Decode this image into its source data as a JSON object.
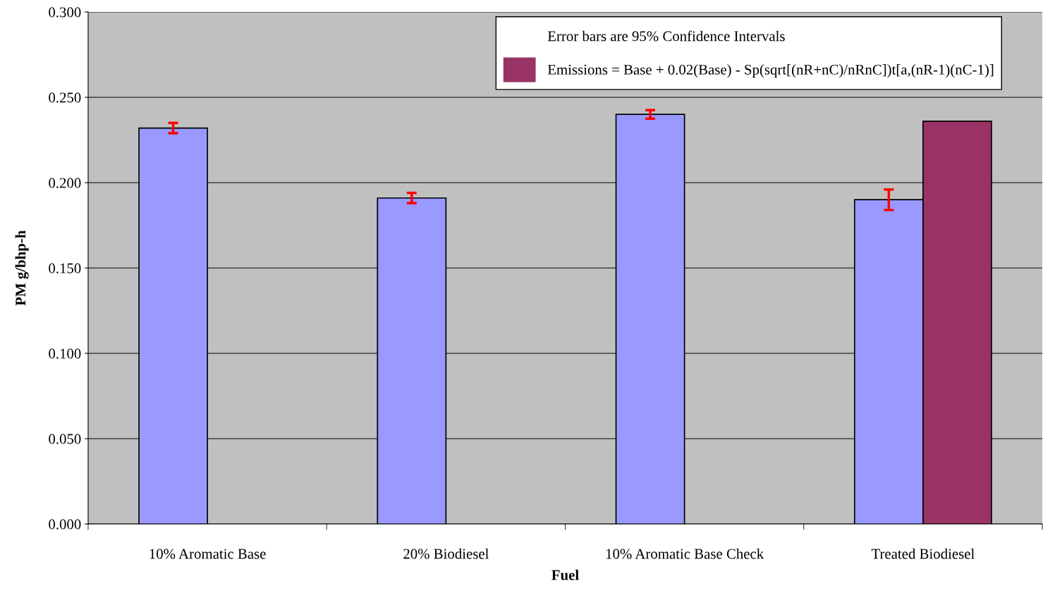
{
  "chart_data": {
    "type": "bar",
    "xlabel": "Fuel",
    "ylabel": "PM g/bhp-h",
    "categories": [
      "10% Aromatic Base",
      "20% Biodiesel",
      "10% Aromatic Base Check",
      "Treated Biodiesel"
    ],
    "series": [
      {
        "color": "#9999ff",
        "values": [
          0.232,
          0.191,
          0.24,
          0.19
        ],
        "errors": [
          0.003,
          0.003,
          0.0025,
          0.006
        ]
      },
      {
        "name": "Emissions = Base + 0.02(Base) - Sp(sqrt[(nR+nC)/nRnC])t[a,(nR-1)(nC-1)]",
        "color": "#993366",
        "values": [
          null,
          null,
          null,
          0.236
        ]
      }
    ],
    "annotations": [
      "Error bars are 95% Confidence Intervals"
    ],
    "ylim": [
      0,
      0.3
    ],
    "yticks": [
      {
        "value": 0,
        "label": "0.000"
      },
      {
        "value": 0.05,
        "label": "0.050"
      },
      {
        "value": 0.1,
        "label": "0.100"
      },
      {
        "value": 0.15,
        "label": "0.150"
      },
      {
        "value": 0.2,
        "label": "0.200"
      },
      {
        "value": 0.25,
        "label": "0.250"
      },
      {
        "value": 0.3,
        "label": "0.300"
      }
    ],
    "grid": "y",
    "legend": "top right"
  }
}
